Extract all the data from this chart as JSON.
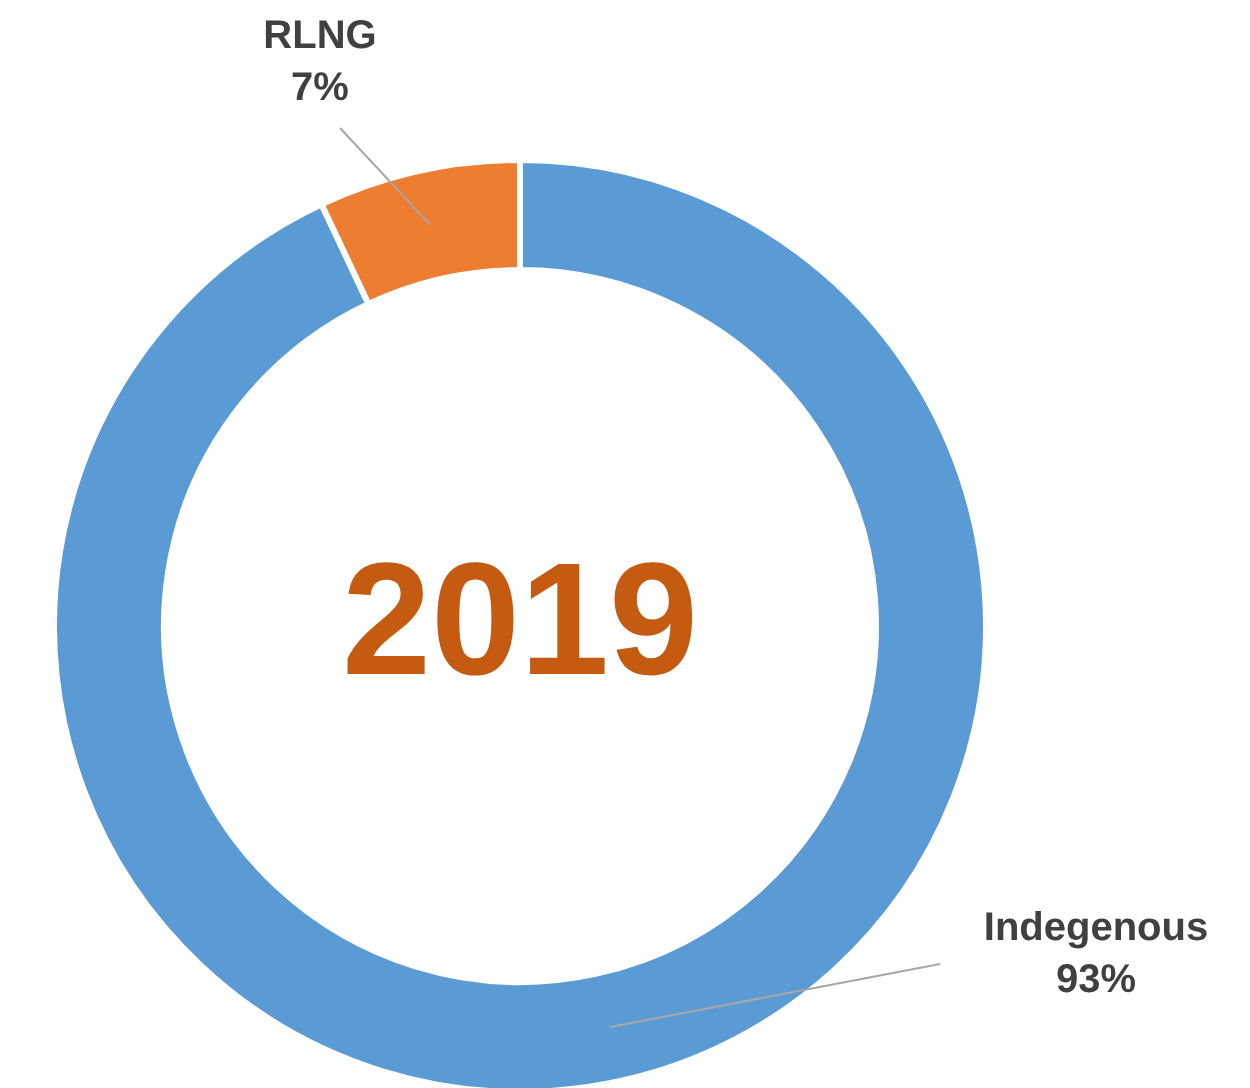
{
  "chart_data": {
    "type": "donut",
    "title": "2019",
    "categories": [
      "Indegenous",
      "RLNG"
    ],
    "values": [
      93,
      7
    ],
    "value_labels": [
      "93%",
      "7%"
    ],
    "colors": [
      "#5b9bd5",
      "#ed7d31"
    ]
  }
}
